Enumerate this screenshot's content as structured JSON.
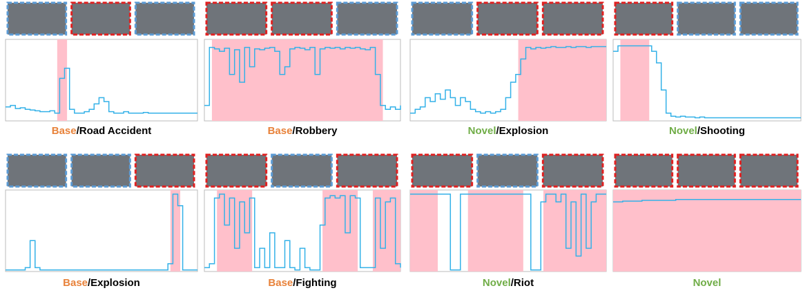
{
  "chart_data": [
    {
      "type": "line",
      "tag": "Base",
      "tag_color": "#e8823a",
      "title": "/Road Accident",
      "color": "#33b1e8",
      "shade_color": "#ffc0cb",
      "xlim": [
        0,
        39
      ],
      "ylim": [
        0,
        1
      ],
      "shaded": [
        [
          10.5,
          12.5
        ]
      ],
      "frame_colors": [
        "#5b9bd5",
        "#e02020",
        "#5b9bd5"
      ],
      "values": [
        0.18,
        0.2,
        0.16,
        0.17,
        0.15,
        0.14,
        0.13,
        0.12,
        0.12,
        0.13,
        0.1,
        0.55,
        0.68,
        0.15,
        0.1,
        0.1,
        0.12,
        0.15,
        0.22,
        0.3,
        0.25,
        0.12,
        0.1,
        0.1,
        0.12,
        0.1,
        0.1,
        0.1,
        0.11,
        0.1,
        0.1,
        0.1,
        0.1,
        0.1,
        0.1,
        0.1,
        0.1,
        0.1,
        0.1,
        0.1
      ]
    },
    {
      "type": "line",
      "tag": "Base",
      "tag_color": "#e8823a",
      "title": "/Robbery",
      "color": "#33b1e8",
      "shade_color": "#ffc0cb",
      "xlim": [
        0,
        39
      ],
      "ylim": [
        0,
        1
      ],
      "shaded": [
        [
          1.5,
          35.5
        ]
      ],
      "frame_colors": [
        "#e02020",
        "#e02020",
        "#5b9bd5"
      ],
      "values": [
        0.2,
        0.95,
        0.93,
        0.9,
        0.94,
        0.6,
        0.92,
        0.5,
        0.95,
        0.7,
        0.93,
        0.92,
        0.94,
        0.95,
        0.9,
        0.6,
        0.7,
        0.93,
        0.95,
        0.94,
        0.92,
        0.95,
        0.6,
        0.93,
        0.95,
        0.94,
        0.95,
        0.93,
        0.95,
        0.94,
        0.95,
        0.93,
        0.92,
        0.95,
        0.6,
        0.2,
        0.15,
        0.18,
        0.15,
        0.2
      ]
    },
    {
      "type": "line",
      "tag": "Novel",
      "tag_color": "#70ad47",
      "title": "/Explosion",
      "color": "#33b1e8",
      "shade_color": "#ffc0cb",
      "xlim": [
        0,
        39
      ],
      "ylim": [
        0,
        1
      ],
      "shaded": [
        [
          21.5,
          39
        ]
      ],
      "frame_colors": [
        "#5b9bd5",
        "#e02020",
        "#e02020"
      ],
      "values": [
        0.1,
        0.15,
        0.18,
        0.3,
        0.25,
        0.35,
        0.28,
        0.4,
        0.3,
        0.2,
        0.3,
        0.25,
        0.15,
        0.12,
        0.1,
        0.12,
        0.1,
        0.12,
        0.15,
        0.3,
        0.5,
        0.6,
        0.8,
        0.95,
        0.93,
        0.95,
        0.94,
        0.95,
        0.96,
        0.95,
        0.95,
        0.96,
        0.95,
        0.96,
        0.96,
        0.95,
        0.96,
        0.96,
        0.96,
        0.96
      ]
    },
    {
      "type": "line",
      "tag": "Novel",
      "tag_color": "#70ad47",
      "title": "/Shooting",
      "color": "#33b1e8",
      "shade_color": "#ffc0cb",
      "xlim": [
        0,
        39
      ],
      "ylim": [
        0,
        1
      ],
      "shaded": [
        [
          1.5,
          7.5
        ]
      ],
      "frame_colors": [
        "#e02020",
        "#5b9bd5",
        "#5b9bd5"
      ],
      "values": [
        0.9,
        0.97,
        0.97,
        0.97,
        0.97,
        0.97,
        0.97,
        0.97,
        0.9,
        0.75,
        0.4,
        0.1,
        0.06,
        0.05,
        0.06,
        0.05,
        0.05,
        0.04,
        0.05,
        0.04,
        0.04,
        0.04,
        0.04,
        0.04,
        0.04,
        0.04,
        0.04,
        0.04,
        0.04,
        0.04,
        0.04,
        0.04,
        0.04,
        0.04,
        0.04,
        0.04,
        0.04,
        0.04,
        0.04,
        0.04
      ]
    },
    {
      "type": "line",
      "tag": "Base",
      "tag_color": "#e8823a",
      "title": "/Explosion",
      "color": "#33b1e8",
      "shade_color": "#ffc0cb",
      "xlim": [
        0,
        39
      ],
      "ylim": [
        0,
        1
      ],
      "shaded": [
        [
          33.5,
          35.5
        ]
      ],
      "frame_colors": [
        "#5b9bd5",
        "#5b9bd5",
        "#e02020"
      ],
      "values": [
        0.02,
        0.02,
        0.02,
        0.02,
        0.05,
        0.4,
        0.05,
        0.02,
        0.02,
        0.02,
        0.02,
        0.02,
        0.02,
        0.02,
        0.02,
        0.02,
        0.02,
        0.02,
        0.02,
        0.02,
        0.02,
        0.02,
        0.02,
        0.02,
        0.02,
        0.02,
        0.02,
        0.02,
        0.02,
        0.02,
        0.02,
        0.02,
        0.02,
        0.1,
        1.0,
        0.85,
        0.02,
        0.02,
        0.02,
        0.02
      ]
    },
    {
      "type": "line",
      "tag": "Base",
      "tag_color": "#e8823a",
      "title": "/Fighting",
      "color": "#33b1e8",
      "shade_color": "#ffc0cb",
      "xlim": [
        0,
        39
      ],
      "ylim": [
        0,
        1
      ],
      "shaded": [
        [
          2.5,
          9.5
        ],
        [
          23.5,
          30.5
        ],
        [
          33.5,
          39
        ]
      ],
      "frame_colors": [
        "#e02020",
        "#5b9bd5",
        "#e02020"
      ],
      "values": [
        0.05,
        0.1,
        0.95,
        1.0,
        0.6,
        0.95,
        0.3,
        0.9,
        0.5,
        0.95,
        0.05,
        0.3,
        0.05,
        0.5,
        0.05,
        0.05,
        0.4,
        0.05,
        0.02,
        0.3,
        0.05,
        0.02,
        0.02,
        0.6,
        0.95,
        0.98,
        0.95,
        0.98,
        0.5,
        0.98,
        0.95,
        0.05,
        0.05,
        0.05,
        0.95,
        0.3,
        0.9,
        0.95,
        0.1,
        0.05
      ]
    },
    {
      "type": "line",
      "tag": "Novel",
      "tag_color": "#70ad47",
      "title": "/Riot",
      "color": "#33b1e8",
      "shade_color": "#ffc0cb",
      "xlim": [
        0,
        39
      ],
      "ylim": [
        0,
        1
      ],
      "shaded": [
        [
          0,
          5.5
        ],
        [
          11.5,
          22.5
        ],
        [
          26.5,
          39
        ]
      ],
      "frame_colors": [
        "#e02020",
        "#5b9bd5",
        "#e02020"
      ],
      "values": [
        1.0,
        1.0,
        1.0,
        1.0,
        1.0,
        1.0,
        1.0,
        1.0,
        0.02,
        0.02,
        1.0,
        1.0,
        1.0,
        1.0,
        1.0,
        1.0,
        1.0,
        1.0,
        1.0,
        1.0,
        1.0,
        1.0,
        1.0,
        1.0,
        0.02,
        0.02,
        0.9,
        1.0,
        1.0,
        0.9,
        1.0,
        0.3,
        0.9,
        0.2,
        1.0,
        0.3,
        0.9,
        1.0,
        1.0,
        1.0
      ]
    },
    {
      "type": "line",
      "tag": "Novel",
      "tag_color": "#70ad47",
      "color": "#33b1e8",
      "shade_color": "#ffc0cb",
      "xlim": [
        0,
        39
      ],
      "ylim": [
        0,
        1
      ],
      "shaded": [
        [
          0,
          39
        ]
      ],
      "frame_colors": [
        "#e02020",
        "#e02020",
        "#e02020"
      ],
      "values": [
        0.9,
        0.9,
        0.91,
        0.91,
        0.91,
        0.91,
        0.92,
        0.92,
        0.92,
        0.92,
        0.92,
        0.92,
        0.92,
        0.93,
        0.93,
        0.93,
        0.93,
        0.93,
        0.93,
        0.93,
        0.93,
        0.93,
        0.93,
        0.93,
        0.93,
        0.93,
        0.93,
        0.93,
        0.93,
        0.93,
        0.93,
        0.93,
        0.93,
        0.93,
        0.93,
        0.93,
        0.93,
        0.93,
        0.93,
        0.93
      ]
    }
  ]
}
